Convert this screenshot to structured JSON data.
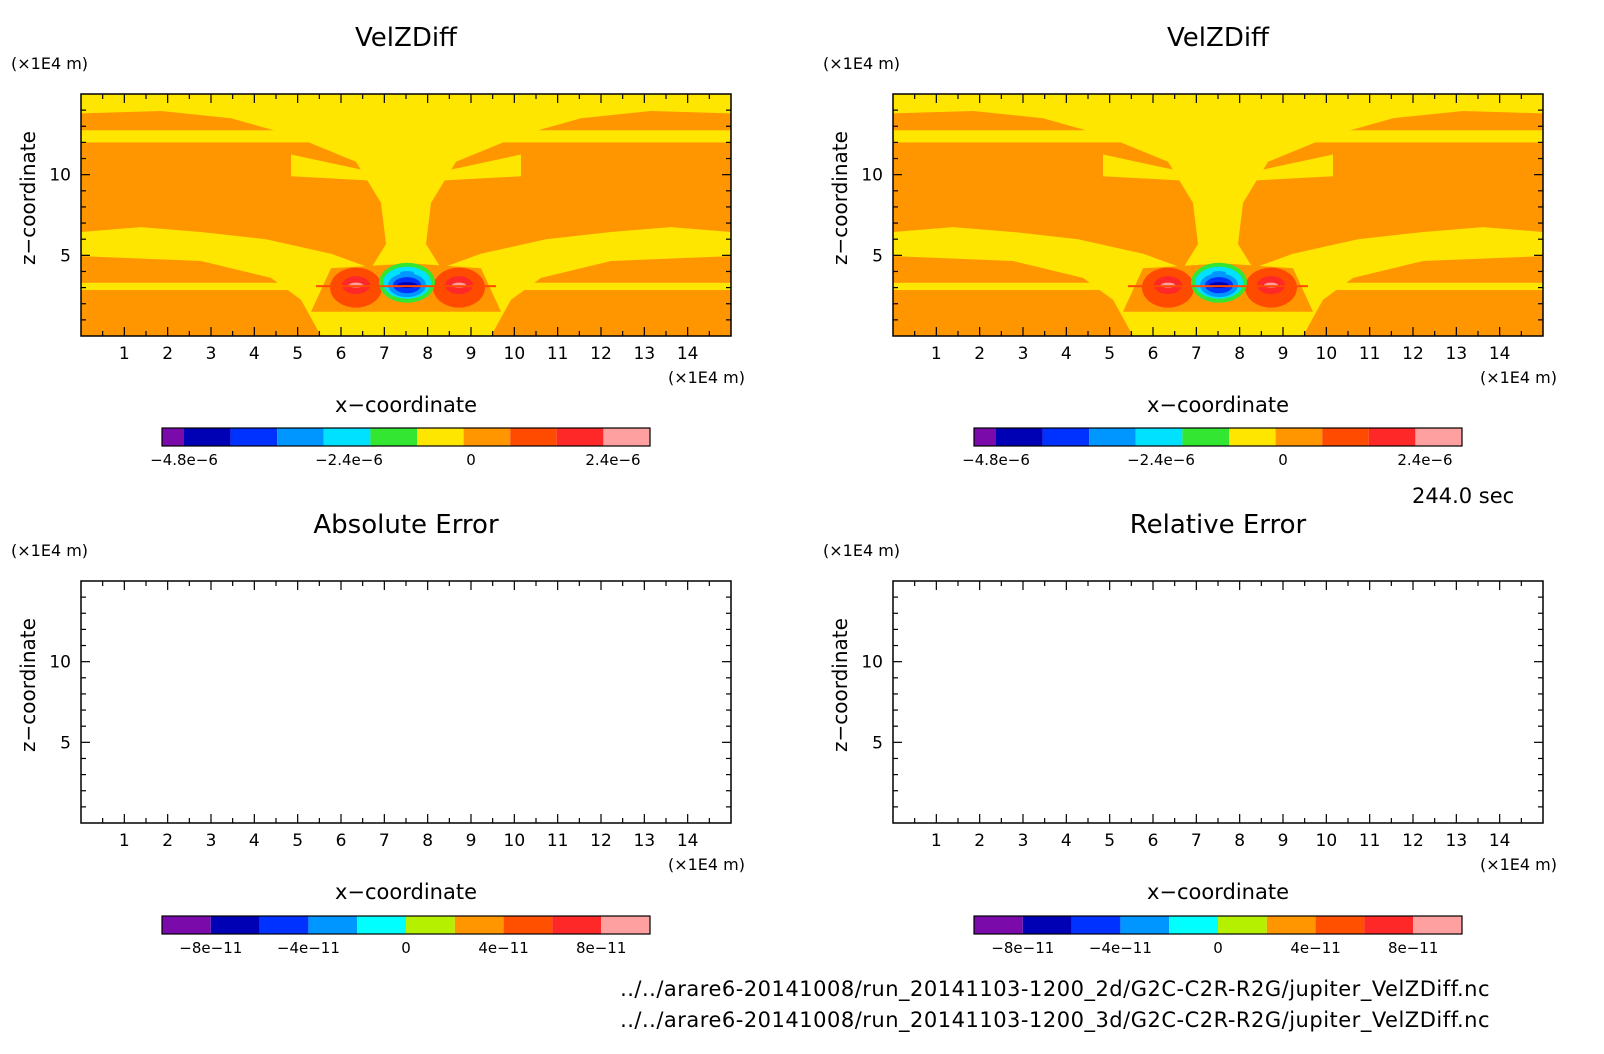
{
  "figure": {
    "time_label": "244.0 sec",
    "files": [
      "../../arare6-20141008/run_20141103-1200_2d/G2C-C2R-R2G/jupiter_VelZDiff.nc",
      "../../arare6-20141008/run_20141103-1200_3d/G2C-C2R-R2G/jupiter_VelZDiff.nc"
    ]
  },
  "chart_data": [
    {
      "type": "heatmap",
      "title": "VelZDiff",
      "xlabel": "x−coordinate",
      "ylabel": "z−coordinate",
      "x_unit": "(×1E4 m)",
      "y_unit": "(×1E4 m)",
      "xlim": [
        0,
        15
      ],
      "ylim": [
        0,
        15
      ],
      "x_ticks": [
        1,
        2,
        3,
        4,
        5,
        6,
        7,
        8,
        9,
        10,
        11,
        12,
        13,
        14
      ],
      "y_ticks": [
        5,
        10
      ],
      "field": "contour-filled",
      "colorbar": {
        "colors": [
          "#7a0aaa",
          "#0000b4",
          "#0032ff",
          "#0096ff",
          "#00e1ff",
          "#32e632",
          "#ffe600",
          "#ff9600",
          "#ff4b00",
          "#ff2828",
          "#ffa0a0"
        ],
        "tick_labels": [
          "−4.8e−6",
          "−2.4e−6",
          "0",
          "2.4e−6"
        ],
        "tick_values": [
          -4.8e-06,
          -2.4e-06,
          0,
          2.4e-06
        ]
      }
    },
    {
      "type": "heatmap",
      "title": "VelZDiff",
      "xlabel": "x−coordinate",
      "ylabel": "z−coordinate",
      "x_unit": "(×1E4 m)",
      "y_unit": "(×1E4 m)",
      "xlim": [
        0,
        15
      ],
      "ylim": [
        0,
        15
      ],
      "x_ticks": [
        1,
        2,
        3,
        4,
        5,
        6,
        7,
        8,
        9,
        10,
        11,
        12,
        13,
        14
      ],
      "y_ticks": [
        5,
        10
      ],
      "field": "contour-filled",
      "colorbar": {
        "colors": [
          "#7a0aaa",
          "#0000b4",
          "#0032ff",
          "#0096ff",
          "#00e1ff",
          "#32e632",
          "#ffe600",
          "#ff9600",
          "#ff4b00",
          "#ff2828",
          "#ffa0a0"
        ],
        "tick_labels": [
          "−4.8e−6",
          "−2.4e−6",
          "0",
          "2.4e−6"
        ],
        "tick_values": [
          -4.8e-06,
          -2.4e-06,
          0,
          2.4e-06
        ]
      }
    },
    {
      "type": "heatmap",
      "title": "Absolute Error",
      "xlabel": "x−coordinate",
      "ylabel": "z−coordinate",
      "x_unit": "(×1E4 m)",
      "y_unit": "(×1E4 m)",
      "xlim": [
        0,
        15
      ],
      "ylim": [
        0,
        15
      ],
      "x_ticks": [
        1,
        2,
        3,
        4,
        5,
        6,
        7,
        8,
        9,
        10,
        11,
        12,
        13,
        14
      ],
      "y_ticks": [
        5,
        10
      ],
      "field": "empty",
      "colorbar": {
        "colors": [
          "#7a0aaa",
          "#0000b4",
          "#0032ff",
          "#0096ff",
          "#00ffff",
          "#b4f000",
          "#ff9600",
          "#ff5000",
          "#ff2828",
          "#ffa0a0"
        ],
        "tick_labels": [
          "−8e−11",
          "−4e−11",
          "0",
          "4e−11",
          "8e−11"
        ],
        "tick_values": [
          -8e-11,
          -4e-11,
          0,
          4e-11,
          8e-11
        ]
      }
    },
    {
      "type": "heatmap",
      "title": "Relative Error",
      "xlabel": "x−coordinate",
      "ylabel": "z−coordinate",
      "x_unit": "(×1E4 m)",
      "y_unit": "(×1E4 m)",
      "xlim": [
        0,
        15
      ],
      "ylim": [
        0,
        15
      ],
      "x_ticks": [
        1,
        2,
        3,
        4,
        5,
        6,
        7,
        8,
        9,
        10,
        11,
        12,
        13,
        14
      ],
      "y_ticks": [
        5,
        10
      ],
      "field": "empty",
      "colorbar": {
        "colors": [
          "#7a0aaa",
          "#0000b4",
          "#0032ff",
          "#0096ff",
          "#00ffff",
          "#b4f000",
          "#ff9600",
          "#ff5000",
          "#ff2828",
          "#ffa0a0"
        ],
        "tick_labels": [
          "−8e−11",
          "−4e−11",
          "0",
          "4e−11",
          "8e−11"
        ],
        "tick_values": [
          -8e-11,
          -4e-11,
          0,
          4e-11,
          8e-11
        ]
      }
    }
  ]
}
